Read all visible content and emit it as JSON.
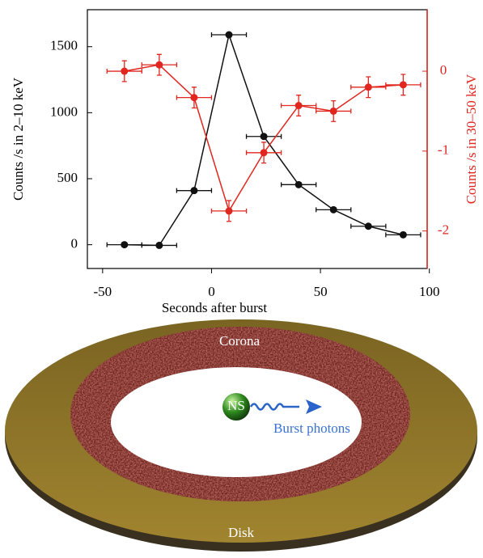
{
  "chart_data": {
    "type": "line",
    "xlabel": "Seconds after burst",
    "ylabel": "Counts /s in 2–10 keV",
    "y2label": "Counts /s in 30–50 keV",
    "xlim": [
      -57,
      99
    ],
    "xticks": [
      -50,
      0,
      50,
      100
    ],
    "ylim": [
      -180,
      1780
    ],
    "yticks": [
      0,
      500,
      1000,
      1500
    ],
    "y2lim": [
      -2.47,
      0.77
    ],
    "y2ticks": [
      -2,
      -1,
      0
    ],
    "x": [
      -40,
      -24,
      -8,
      8,
      24,
      40,
      56,
      72,
      88
    ],
    "xerr": [
      8,
      8,
      8,
      8,
      8,
      8,
      8,
      8,
      8
    ],
    "series": [
      {
        "color": "#111111",
        "axis": "y",
        "values": [
          0,
          -5,
          410,
          1590,
          820,
          455,
          265,
          140,
          75
        ]
      },
      {
        "color": "#e0261f",
        "axis": "y2",
        "values": [
          0,
          0.08,
          -0.33,
          -1.75,
          -1.02,
          -0.43,
          -0.5,
          -0.2,
          -0.17
        ],
        "yerr": [
          0.13,
          0.13,
          0.13,
          0.13,
          0.13,
          0.13,
          0.13,
          0.13,
          0.13
        ]
      }
    ]
  },
  "illustration": {
    "corona": "Corona",
    "neutron_star": "NS",
    "photons": "Burst photons",
    "disk": "Disk"
  }
}
